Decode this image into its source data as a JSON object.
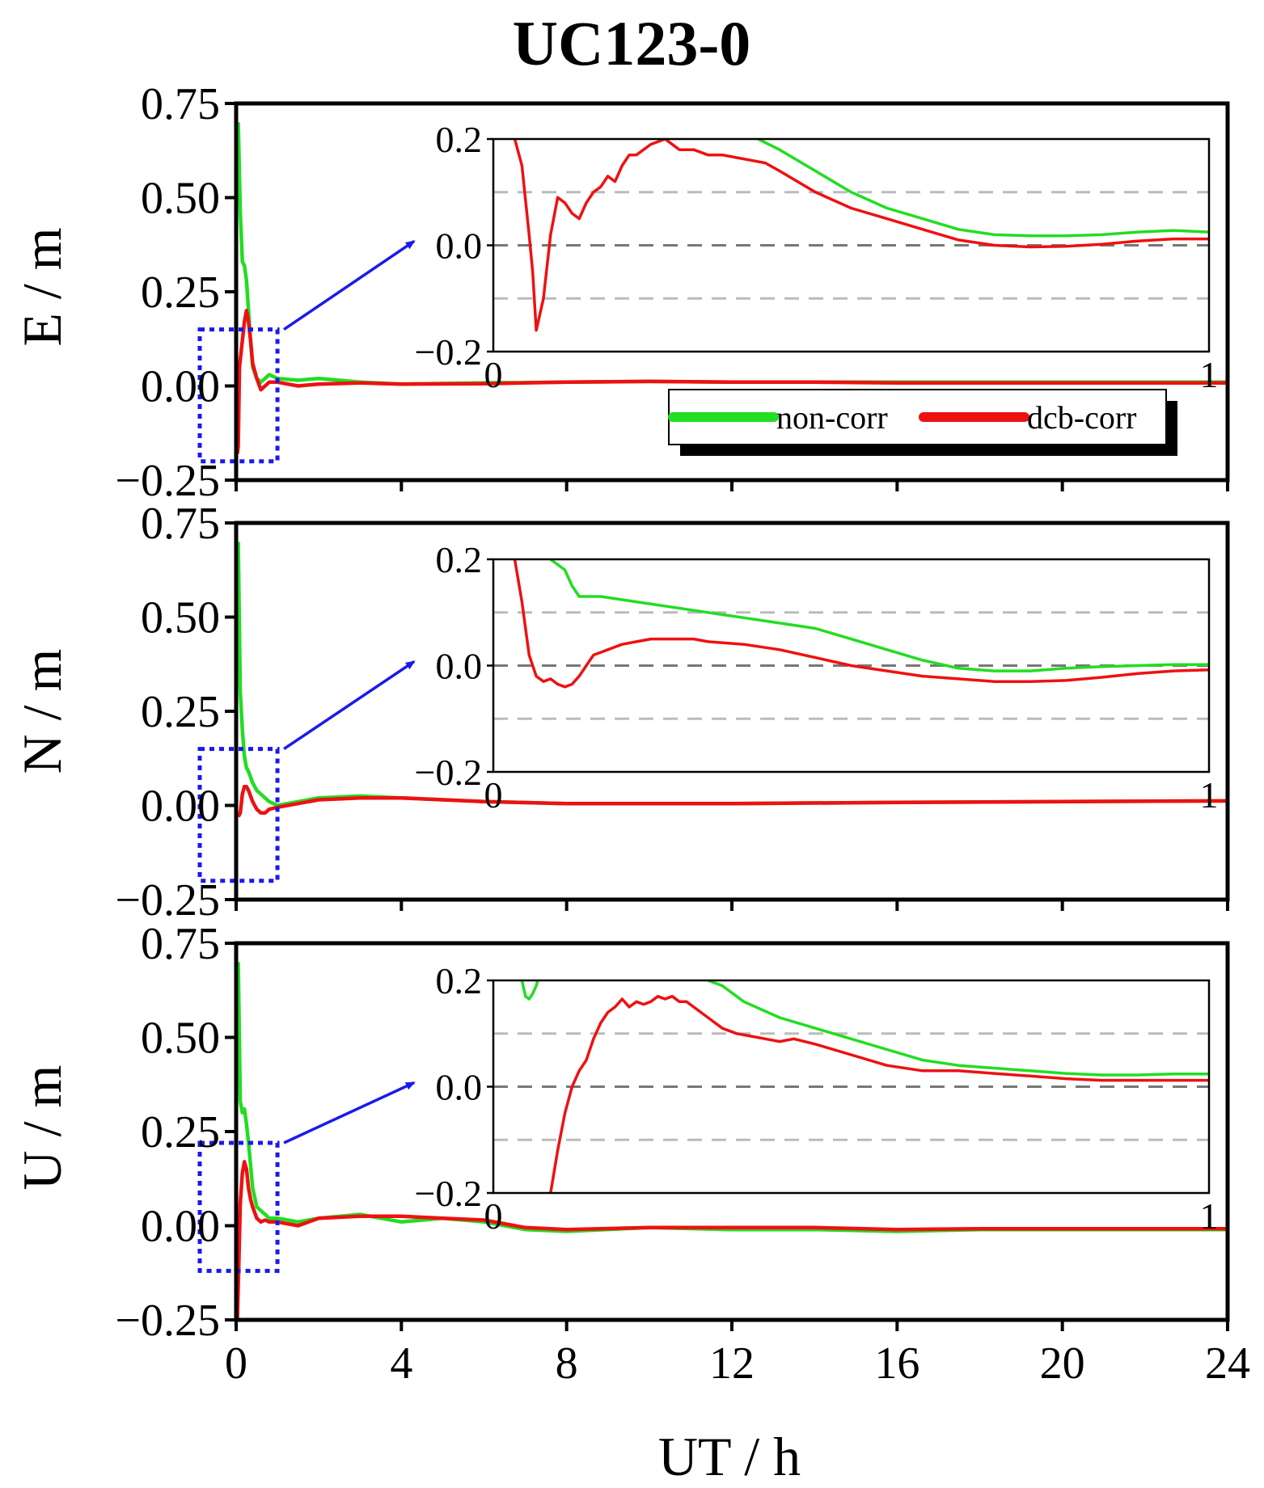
{
  "chart_data": {
    "type": "line",
    "title": "UC123-0",
    "xlabel": "UT / h",
    "xlim": [
      0,
      24
    ],
    "xticks": [
      "0",
      "4",
      "8",
      "12",
      "16",
      "20",
      "24"
    ],
    "ylim": [
      -0.25,
      0.75
    ],
    "yticks": [
      "0.75",
      "0.50",
      "0.25",
      "0.00",
      "−0.25"
    ],
    "legend": {
      "placement": "bottom-right of top panel",
      "entries": [
        {
          "label": "non-corr",
          "color": "#22dd22"
        },
        {
          "label": "dcb-corr",
          "color": "#ee1111"
        }
      ]
    },
    "colors": {
      "non_corr": "#22dd22",
      "dcb_corr": "#ee1111",
      "zoom_box": "#1a1aee",
      "arrow": "#1a1aee",
      "ref_zero": "#777777",
      "ref_grid": "#bbbbbb"
    },
    "panels": [
      {
        "ylabel": "E / m",
        "zoom_box": {
          "x": [
            0,
            1
          ],
          "y": [
            -0.2,
            0.15
          ]
        },
        "series": [
          {
            "name": "non-corr",
            "x": [
              0.05,
              0.1,
              0.15,
              0.2,
              0.25,
              0.3,
              0.35,
              0.4,
              0.5,
              0.6,
              0.7,
              0.8,
              1.0,
              1.5,
              2.0,
              3.0,
              4.0,
              6.0,
              8.0,
              10,
              12,
              14,
              16,
              18,
              20,
              22,
              24
            ],
            "y": [
              0.7,
              0.46,
              0.33,
              0.32,
              0.28,
              0.2,
              0.12,
              0.05,
              0.02,
              0.01,
              0.02,
              0.03,
              0.02,
              0.015,
              0.02,
              0.01,
              0.005,
              0.008,
              0.01,
              0.012,
              0.01,
              0.01,
              0.01,
              0.01,
              0.01,
              0.01,
              0.01
            ]
          },
          {
            "name": "dcb-corr",
            "x": [
              0.03,
              0.05,
              0.08,
              0.12,
              0.16,
              0.2,
              0.25,
              0.3,
              0.35,
              0.4,
              0.5,
              0.6,
              0.7,
              0.8,
              1.0,
              1.5,
              2.0,
              3.0,
              4.0,
              6.0,
              8.0,
              10,
              12,
              14,
              16,
              18,
              20,
              22,
              24
            ],
            "y": [
              -0.18,
              -0.16,
              0.05,
              0.09,
              0.13,
              0.17,
              0.2,
              0.17,
              0.12,
              0.06,
              0.02,
              -0.01,
              0.0,
              0.01,
              0.01,
              0.0,
              0.005,
              0.008,
              0.005,
              0.006,
              0.01,
              0.012,
              0.01,
              0.01,
              0.008,
              0.008,
              0.008,
              0.008,
              0.008
            ]
          }
        ],
        "inset": {
          "xlim": [
            0,
            1
          ],
          "ylim": [
            -0.2,
            0.2
          ],
          "xticks": [
            "0",
            "1"
          ],
          "yticks": [
            "0.2",
            "0.0",
            "−0.2"
          ],
          "ref_lines": [
            0.1,
            0.0,
            -0.1
          ],
          "series": [
            {
              "name": "non-corr",
              "x": [
                0.37,
                0.4,
                0.45,
                0.5,
                0.55,
                0.6,
                0.65,
                0.7,
                0.75,
                0.8,
                0.85,
                0.9,
                0.95,
                1.0
              ],
              "y": [
                0.2,
                0.18,
                0.14,
                0.1,
                0.07,
                0.05,
                0.03,
                0.02,
                0.018,
                0.018,
                0.02,
                0.025,
                0.028,
                0.025
              ]
            },
            {
              "name": "dcb-corr",
              "x": [
                0.03,
                0.04,
                0.05,
                0.055,
                0.06,
                0.07,
                0.08,
                0.09,
                0.1,
                0.11,
                0.12,
                0.13,
                0.14,
                0.15,
                0.16,
                0.17,
                0.18,
                0.19,
                0.2,
                0.22,
                0.24,
                0.26,
                0.28,
                0.3,
                0.32,
                0.34,
                0.36,
                0.38,
                0.4,
                0.45,
                0.5,
                0.55,
                0.6,
                0.65,
                0.7,
                0.75,
                0.8,
                0.85,
                0.9,
                0.95,
                1.0
              ],
              "y": [
                0.2,
                0.15,
                0.02,
                -0.05,
                -0.16,
                -0.1,
                0.02,
                0.09,
                0.08,
                0.06,
                0.05,
                0.08,
                0.1,
                0.11,
                0.13,
                0.12,
                0.15,
                0.17,
                0.17,
                0.19,
                0.2,
                0.18,
                0.18,
                0.17,
                0.17,
                0.165,
                0.16,
                0.155,
                0.14,
                0.1,
                0.07,
                0.05,
                0.03,
                0.01,
                0.0,
                -0.003,
                -0.002,
                0.002,
                0.008,
                0.012,
                0.012
              ]
            }
          ]
        }
      },
      {
        "ylabel": "N / m",
        "zoom_box": {
          "x": [
            0,
            1
          ],
          "y": [
            -0.2,
            0.15
          ]
        },
        "series": [
          {
            "name": "non-corr",
            "x": [
              0.05,
              0.1,
              0.15,
              0.2,
              0.25,
              0.3,
              0.4,
              0.5,
              0.6,
              0.8,
              1.0,
              1.5,
              2.0,
              3.0,
              4.0,
              6.0,
              8.0,
              12,
              16,
              20,
              24
            ],
            "y": [
              0.7,
              0.3,
              0.2,
              0.13,
              0.1,
              0.09,
              0.06,
              0.04,
              0.03,
              0.01,
              0.0,
              0.01,
              0.02,
              0.025,
              0.02,
              0.01,
              0.005,
              0.005,
              0.008,
              0.01,
              0.012
            ]
          },
          {
            "name": "dcb-corr",
            "x": [
              0.05,
              0.1,
              0.15,
              0.2,
              0.25,
              0.3,
              0.4,
              0.5,
              0.6,
              0.7,
              0.8,
              1.0,
              1.5,
              2.0,
              3.0,
              4.0,
              6.0,
              8.0,
              12,
              16,
              20,
              24
            ],
            "y": [
              -0.03,
              -0.02,
              0.03,
              0.05,
              0.05,
              0.04,
              0.01,
              -0.01,
              -0.02,
              -0.02,
              -0.01,
              -0.005,
              0.005,
              0.015,
              0.02,
              0.02,
              0.01,
              0.005,
              0.005,
              0.008,
              0.01,
              0.012
            ]
          }
        ],
        "inset": {
          "xlim": [
            0,
            1
          ],
          "ylim": [
            -0.2,
            0.2
          ],
          "xticks": [
            "0",
            "1"
          ],
          "yticks": [
            "0.2",
            "0.0",
            "−0.2"
          ],
          "ref_lines": [
            0.1,
            0.0,
            -0.1
          ],
          "series": [
            {
              "name": "non-corr",
              "x": [
                0.08,
                0.1,
                0.11,
                0.12,
                0.15,
                0.2,
                0.25,
                0.3,
                0.35,
                0.4,
                0.45,
                0.5,
                0.55,
                0.6,
                0.65,
                0.7,
                0.75,
                0.8,
                0.85,
                0.9,
                0.95,
                1.0
              ],
              "y": [
                0.2,
                0.18,
                0.15,
                0.13,
                0.13,
                0.12,
                0.11,
                0.1,
                0.09,
                0.08,
                0.07,
                0.05,
                0.03,
                0.01,
                -0.005,
                -0.01,
                -0.01,
                -0.005,
                -0.002,
                0.0,
                0.002,
                0.002
              ]
            },
            {
              "name": "dcb-corr",
              "x": [
                0.03,
                0.04,
                0.05,
                0.06,
                0.07,
                0.08,
                0.09,
                0.1,
                0.11,
                0.12,
                0.13,
                0.14,
                0.15,
                0.16,
                0.18,
                0.2,
                0.22,
                0.25,
                0.28,
                0.3,
                0.35,
                0.4,
                0.45,
                0.5,
                0.55,
                0.6,
                0.65,
                0.7,
                0.75,
                0.8,
                0.85,
                0.9,
                0.95,
                1.0
              ],
              "y": [
                0.2,
                0.12,
                0.02,
                -0.02,
                -0.03,
                -0.025,
                -0.035,
                -0.04,
                -0.035,
                -0.02,
                0.0,
                0.02,
                0.025,
                0.03,
                0.04,
                0.045,
                0.05,
                0.05,
                0.05,
                0.045,
                0.04,
                0.03,
                0.015,
                0.0,
                -0.01,
                -0.02,
                -0.025,
                -0.03,
                -0.03,
                -0.028,
                -0.022,
                -0.015,
                -0.01,
                -0.008
              ]
            }
          ]
        }
      },
      {
        "ylabel": "U / m",
        "zoom_box": {
          "x": [
            0,
            1
          ],
          "y": [
            -0.12,
            0.22
          ]
        },
        "series": [
          {
            "name": "non-corr",
            "x": [
              0.05,
              0.1,
              0.15,
              0.2,
              0.25,
              0.3,
              0.35,
              0.4,
              0.5,
              0.6,
              0.7,
              0.8,
              1.0,
              1.5,
              2.0,
              3.0,
              4.0,
              5.0,
              6.0,
              7.0,
              8.0,
              10,
              12,
              14,
              16,
              18,
              20,
              22,
              24
            ],
            "y": [
              0.7,
              0.33,
              0.3,
              0.31,
              0.27,
              0.22,
              0.16,
              0.1,
              0.05,
              0.04,
              0.03,
              0.02,
              0.02,
              0.01,
              0.02,
              0.03,
              0.01,
              0.02,
              0.01,
              -0.01,
              -0.015,
              -0.005,
              -0.01,
              -0.01,
              -0.015,
              -0.01,
              -0.01,
              -0.01,
              -0.01
            ]
          },
          {
            "name": "dcb-corr",
            "x": [
              0.03,
              0.06,
              0.1,
              0.15,
              0.2,
              0.25,
              0.3,
              0.35,
              0.4,
              0.5,
              0.6,
              0.7,
              0.8,
              1.0,
              1.5,
              2.0,
              3.0,
              4.0,
              5.0,
              6.0,
              7.0,
              8.0,
              10,
              12,
              14,
              16,
              18,
              20,
              22,
              24
            ],
            "y": [
              -0.25,
              -0.12,
              0.06,
              0.14,
              0.17,
              0.15,
              0.1,
              0.07,
              0.05,
              0.02,
              0.01,
              0.015,
              0.01,
              0.01,
              0.0,
              0.02,
              0.025,
              0.025,
              0.02,
              0.015,
              -0.005,
              -0.01,
              -0.005,
              -0.005,
              -0.005,
              -0.01,
              -0.008,
              -0.008,
              -0.008,
              -0.008
            ]
          }
        ],
        "inset": {
          "xlim": [
            0,
            1
          ],
          "ylim": [
            -0.2,
            0.2
          ],
          "xticks": [
            "0",
            "1"
          ],
          "yticks": [
            "0.2",
            "0.0",
            "−0.2"
          ],
          "ref_lines": [
            0.1,
            0.0,
            -0.1
          ],
          "series": [
            {
              "name": "non-corr",
              "x": [
                0.04,
                0.045,
                0.05,
                0.055,
                0.06,
                0.062
              ],
              "y": [
                0.2,
                0.17,
                0.165,
                0.175,
                0.19,
                0.2
              ]
            },
            {
              "name": "non-corr",
              "x": [
                0.3,
                0.32,
                0.35,
                0.4,
                0.45,
                0.5,
                0.55,
                0.6,
                0.65,
                0.7,
                0.75,
                0.8,
                0.85,
                0.9,
                0.95,
                1.0
              ],
              "y": [
                0.2,
                0.19,
                0.16,
                0.13,
                0.11,
                0.09,
                0.07,
                0.05,
                0.04,
                0.035,
                0.03,
                0.025,
                0.022,
                0.022,
                0.024,
                0.024
              ]
            },
            {
              "name": "dcb-corr",
              "x": [
                0.08,
                0.09,
                0.1,
                0.11,
                0.12,
                0.13,
                0.14,
                0.15,
                0.16,
                0.17,
                0.18,
                0.19,
                0.2,
                0.21,
                0.22,
                0.23,
                0.24,
                0.25,
                0.26,
                0.27,
                0.28,
                0.3,
                0.32,
                0.34,
                0.36,
                0.38,
                0.4,
                0.42,
                0.45,
                0.5,
                0.55,
                0.6,
                0.65,
                0.7,
                0.75,
                0.8,
                0.85,
                0.9,
                0.95,
                1.0
              ],
              "y": [
                -0.2,
                -0.12,
                -0.05,
                0.0,
                0.03,
                0.05,
                0.09,
                0.12,
                0.14,
                0.15,
                0.165,
                0.15,
                0.16,
                0.155,
                0.16,
                0.17,
                0.165,
                0.17,
                0.16,
                0.16,
                0.15,
                0.13,
                0.11,
                0.1,
                0.095,
                0.09,
                0.085,
                0.09,
                0.08,
                0.06,
                0.04,
                0.03,
                0.03,
                0.025,
                0.02,
                0.015,
                0.012,
                0.012,
                0.012,
                0.012
              ]
            }
          ]
        }
      }
    ]
  }
}
